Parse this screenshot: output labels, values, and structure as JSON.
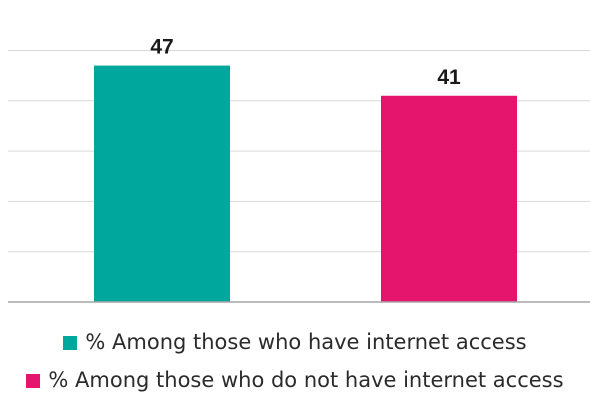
{
  "chart_data": {
    "type": "bar",
    "title": "",
    "xlabel": "",
    "ylabel": "",
    "ylim": [
      0,
      50
    ],
    "grid": true,
    "legend_position": "bottom",
    "series": [
      {
        "name": "% Among those who have internet access",
        "value": 47,
        "label": "47",
        "color": "#00A79D"
      },
      {
        "name": "% Among those who do not have internet access",
        "value": 41,
        "label": "41",
        "color": "#E5156E"
      }
    ]
  }
}
